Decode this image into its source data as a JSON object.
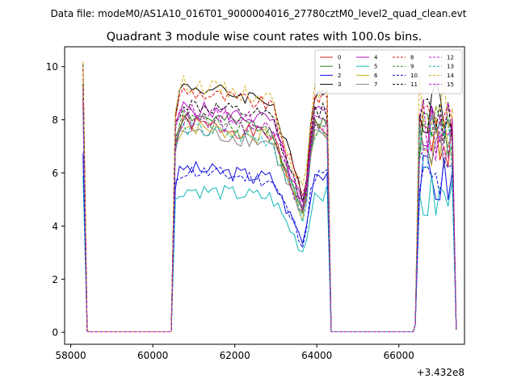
{
  "figure": {
    "suptitle": "Data file: modeM0/AS1A10_016T01_9000004016_27780cztM0_level2_quad_clean.evt",
    "title": "Quadrant 3 module wise count rates with 100.0s bins.",
    "offset_label": "+3.432e8"
  },
  "chart_data": {
    "type": "line",
    "title": "Quadrant 3 module wise count rates with 100.0s bins.",
    "xlabel": "",
    "ylabel": "",
    "x_offset": 343200000,
    "xlim": [
      57850,
      67600
    ],
    "ylim": [
      -0.45,
      10.75
    ],
    "x_ticks": [
      58000,
      60000,
      62000,
      64000,
      66000
    ],
    "x_tick_labels": [
      "58000",
      "60000",
      "62000",
      "64000",
      "66000"
    ],
    "y_ticks": [
      0,
      2,
      4,
      6,
      8,
      10
    ],
    "y_tick_labels": [
      "0",
      "2",
      "4",
      "6",
      "8",
      "10"
    ],
    "grid": false,
    "legend_location": "upper-right",
    "legend_columns": 4,
    "series": [
      {
        "name": "0",
        "color": "#d62020",
        "dash": "solid",
        "base": 7.9,
        "eclipse_scale": 0.62,
        "seed": 1
      },
      {
        "name": "1",
        "color": "#2a7a1a",
        "dash": "solid",
        "base": 8.2,
        "eclipse_scale": 0.62,
        "seed": 2
      },
      {
        "name": "2",
        "color": "#1010e0",
        "dash": "solid",
        "base": 6.2,
        "eclipse_scale": 0.62,
        "seed": 3
      },
      {
        "name": "3",
        "color": "#000000",
        "dash": "solid",
        "base": 9.3,
        "eclipse_scale": 0.58,
        "seed": 4
      },
      {
        "name": "4",
        "color": "#b010c0",
        "dash": "solid",
        "base": 8.5,
        "eclipse_scale": 0.6,
        "seed": 5
      },
      {
        "name": "5",
        "color": "#10b8b8",
        "dash": "solid",
        "base": 5.4,
        "eclipse_scale": 0.7,
        "seed": 6
      },
      {
        "name": "6",
        "color": "#c8b020",
        "dash": "solid",
        "base": 7.8,
        "eclipse_scale": 0.62,
        "seed": 7
      },
      {
        "name": "7",
        "color": "#808080",
        "dash": "solid",
        "base": 7.6,
        "eclipse_scale": 0.6,
        "seed": 8
      },
      {
        "name": "8",
        "color": "#e01010",
        "dash": "dashed",
        "base": 9.1,
        "eclipse_scale": 0.6,
        "seed": 9
      },
      {
        "name": "9",
        "color": "#2a8a1a",
        "dash": "dashed",
        "base": 8.1,
        "eclipse_scale": 0.62,
        "seed": 10
      },
      {
        "name": "10",
        "color": "#1010e0",
        "dash": "dashed",
        "base": 6.1,
        "eclipse_scale": 0.66,
        "seed": 11
      },
      {
        "name": "11",
        "color": "#000000",
        "dash": "dashed",
        "base": 8.6,
        "eclipse_scale": 0.6,
        "seed": 12
      },
      {
        "name": "12",
        "color": "#c010c0",
        "dash": "dashed",
        "base": 8.4,
        "eclipse_scale": 0.6,
        "seed": 13
      },
      {
        "name": "13",
        "color": "#10b8b8",
        "dash": "dashed",
        "base": 7.7,
        "eclipse_scale": 0.62,
        "seed": 14
      },
      {
        "name": "14",
        "color": "#d8b020",
        "dash": "dashed",
        "base": 9.4,
        "eclipse_scale": 0.6,
        "seed": 15
      },
      {
        "name": "15",
        "color": "#b010c0",
        "dash": "dashed",
        "base": 8.0,
        "eclipse_scale": 0.62,
        "seed": 16
      }
    ],
    "segments": [
      {
        "x_start": 58300,
        "x_end": 58400,
        "shape": "drop",
        "start_factor": 1.08
      },
      {
        "x_start": 58450,
        "x_end": 60500,
        "shape": "zero"
      },
      {
        "x_start": 60550,
        "x_end": 64250,
        "shape": "orbit"
      },
      {
        "x_start": 64350,
        "x_end": 66350,
        "shape": "zero"
      },
      {
        "x_start": 66400,
        "x_end": 67400,
        "shape": "tail"
      }
    ]
  }
}
